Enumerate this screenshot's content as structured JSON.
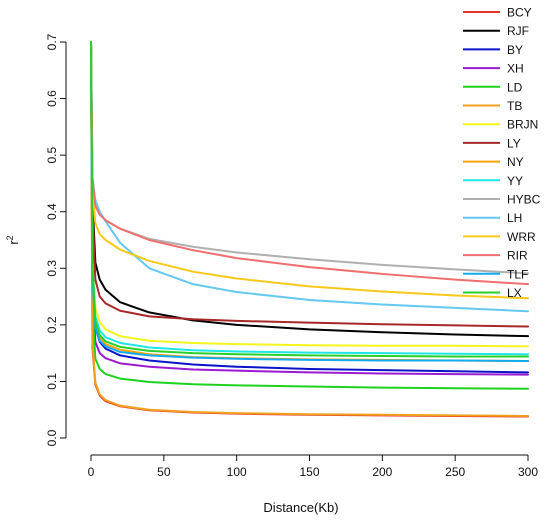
{
  "chart_data": {
    "type": "line",
    "title": "",
    "xlabel": "Distance(Kb)",
    "ylabel": "r",
    "ylabel_superscript": "2",
    "xlim": [
      0,
      300
    ],
    "ylim": [
      0,
      0.7
    ],
    "x_ticks": [
      "0",
      "50",
      "100",
      "150",
      "200",
      "250",
      "300"
    ],
    "y_ticks": [
      "0.0",
      "0.1",
      "0.2",
      "0.3",
      "0.4",
      "0.5",
      "0.6",
      "0.7"
    ],
    "grid": false,
    "legend_position": "top-right",
    "series": [
      {
        "name": "BCY",
        "color": "#e8312a",
        "x": [
          0,
          1,
          3,
          6,
          10,
          20,
          40,
          70,
          100,
          150,
          200,
          250,
          300
        ],
        "values": [
          0.7,
          0.16,
          0.095,
          0.075,
          0.065,
          0.056,
          0.049,
          0.045,
          0.043,
          0.041,
          0.04,
          0.039,
          0.038
        ]
      },
      {
        "name": "RJF",
        "color": "#000000",
        "x": [
          0,
          1,
          3,
          6,
          10,
          20,
          40,
          70,
          100,
          150,
          200,
          250,
          300
        ],
        "values": [
          0.7,
          0.42,
          0.31,
          0.28,
          0.262,
          0.24,
          0.222,
          0.208,
          0.2,
          0.192,
          0.187,
          0.183,
          0.18
        ]
      },
      {
        "name": "BY",
        "color": "#0b14c8",
        "x": [
          0,
          1,
          3,
          6,
          10,
          20,
          40,
          70,
          100,
          150,
          200,
          250,
          300
        ],
        "values": [
          0.7,
          0.3,
          0.195,
          0.17,
          0.158,
          0.146,
          0.137,
          0.13,
          0.126,
          0.122,
          0.12,
          0.118,
          0.116
        ]
      },
      {
        "name": "XH",
        "color": "#9a1bd0",
        "x": [
          0,
          1,
          3,
          6,
          10,
          20,
          40,
          70,
          100,
          150,
          200,
          250,
          300
        ],
        "values": [
          0.7,
          0.26,
          0.17,
          0.15,
          0.141,
          0.132,
          0.126,
          0.121,
          0.119,
          0.116,
          0.114,
          0.113,
          0.112
        ]
      },
      {
        "name": "LD",
        "color": "#1ed21e",
        "x": [
          0,
          1,
          3,
          6,
          10,
          20,
          40,
          70,
          100,
          150,
          200,
          250,
          300
        ],
        "values": [
          0.7,
          0.23,
          0.14,
          0.122,
          0.113,
          0.105,
          0.099,
          0.095,
          0.093,
          0.091,
          0.089,
          0.088,
          0.087
        ]
      },
      {
        "name": "TB",
        "color": "#f0a21e",
        "x": [
          0,
          1,
          3,
          6,
          10,
          20,
          40,
          70,
          100,
          150,
          200,
          250,
          300
        ],
        "values": [
          0.7,
          0.17,
          0.098,
          0.077,
          0.067,
          0.057,
          0.05,
          0.046,
          0.044,
          0.042,
          0.041,
          0.04,
          0.039
        ]
      },
      {
        "name": "BRJN",
        "color": "#f5f51e",
        "x": [
          0,
          1,
          3,
          6,
          10,
          20,
          40,
          70,
          100,
          150,
          200,
          250,
          300
        ],
        "values": [
          0.7,
          0.33,
          0.23,
          0.205,
          0.192,
          0.18,
          0.172,
          0.168,
          0.166,
          0.164,
          0.163,
          0.163,
          0.162
        ]
      },
      {
        "name": "LY",
        "color": "#a82828",
        "x": [
          0,
          1,
          3,
          6,
          10,
          20,
          40,
          70,
          100,
          150,
          200,
          250,
          300
        ],
        "values": [
          0.7,
          0.4,
          0.28,
          0.25,
          0.238,
          0.225,
          0.215,
          0.21,
          0.207,
          0.204,
          0.201,
          0.199,
          0.197
        ]
      },
      {
        "name": "NY",
        "color": "#f5a50a",
        "x": [
          0,
          1,
          3,
          6,
          10,
          20,
          40,
          70,
          100,
          150,
          200,
          250,
          300
        ],
        "values": [
          0.7,
          0.29,
          0.2,
          0.178,
          0.166,
          0.156,
          0.148,
          0.143,
          0.141,
          0.139,
          0.138,
          0.137,
          0.136
        ]
      },
      {
        "name": "YY",
        "color": "#1ee6e6",
        "x": [
          0,
          1,
          3,
          6,
          10,
          20,
          40,
          70,
          100,
          150,
          200,
          250,
          300
        ],
        "values": [
          0.7,
          0.31,
          0.215,
          0.19,
          0.178,
          0.168,
          0.16,
          0.155,
          0.153,
          0.151,
          0.15,
          0.149,
          0.148
        ]
      },
      {
        "name": "HYBC",
        "color": "#b0b0b0",
        "x": [
          0,
          1,
          3,
          6,
          10,
          20,
          40,
          70,
          100,
          150,
          200,
          250,
          300
        ],
        "values": [
          0.7,
          0.46,
          0.41,
          0.395,
          0.385,
          0.37,
          0.352,
          0.338,
          0.328,
          0.316,
          0.306,
          0.298,
          0.291
        ]
      },
      {
        "name": "LH",
        "color": "#64c8f0",
        "x": [
          0,
          1,
          3,
          6,
          10,
          20,
          40,
          70,
          100,
          150,
          200,
          250,
          300
        ],
        "values": [
          0.7,
          0.46,
          0.42,
          0.4,
          0.383,
          0.345,
          0.3,
          0.272,
          0.258,
          0.244,
          0.236,
          0.23,
          0.224
        ]
      },
      {
        "name": "WRR",
        "color": "#f7c81a",
        "x": [
          0,
          1,
          3,
          6,
          10,
          20,
          40,
          70,
          100,
          150,
          200,
          250,
          300
        ],
        "values": [
          0.7,
          0.44,
          0.38,
          0.36,
          0.35,
          0.333,
          0.313,
          0.294,
          0.282,
          0.268,
          0.259,
          0.252,
          0.247
        ]
      },
      {
        "name": "RIR",
        "color": "#f06e6e",
        "x": [
          0,
          1,
          3,
          6,
          10,
          20,
          40,
          70,
          100,
          150,
          200,
          250,
          300
        ],
        "values": [
          0.7,
          0.46,
          0.41,
          0.395,
          0.385,
          0.37,
          0.35,
          0.332,
          0.318,
          0.302,
          0.29,
          0.28,
          0.272
        ]
      },
      {
        "name": "TLF",
        "color": "#14aaf0",
        "x": [
          0,
          1,
          3,
          6,
          10,
          20,
          40,
          70,
          100,
          150,
          200,
          250,
          300
        ],
        "values": [
          0.7,
          0.28,
          0.195,
          0.172,
          0.162,
          0.152,
          0.146,
          0.142,
          0.14,
          0.138,
          0.137,
          0.137,
          0.136
        ]
      },
      {
        "name": "LX",
        "color": "#2ad02a",
        "x": [
          0,
          1,
          3,
          6,
          10,
          20,
          40,
          70,
          100,
          150,
          200,
          250,
          300
        ],
        "values": [
          0.7,
          0.3,
          0.205,
          0.182,
          0.171,
          0.161,
          0.154,
          0.15,
          0.148,
          0.146,
          0.145,
          0.144,
          0.144
        ]
      }
    ]
  }
}
